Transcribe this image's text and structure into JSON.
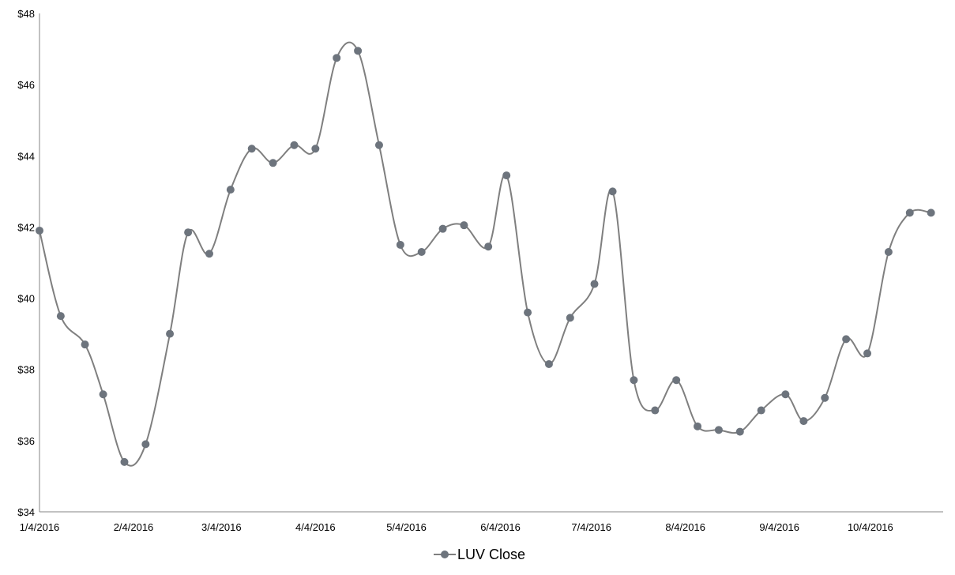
{
  "chart_data": {
    "type": "line",
    "title": "",
    "xlabel": "",
    "ylabel": "",
    "ylim": [
      34,
      48
    ],
    "xlim": [
      "2016-01-04",
      "2016-10-28"
    ],
    "y_ticks": [
      "$34",
      "$36",
      "$38",
      "$40",
      "$42",
      "$44",
      "$46",
      "$48"
    ],
    "y_tick_values": [
      34,
      36,
      38,
      40,
      42,
      44,
      46,
      48
    ],
    "x_ticks": [
      "1/4/2016",
      "2/4/2016",
      "3/4/2016",
      "4/4/2016",
      "5/4/2016",
      "6/4/2016",
      "7/4/2016",
      "8/4/2016",
      "9/4/2016",
      "10/4/2016"
    ],
    "x_tick_dates": [
      "2016-01-04",
      "2016-02-04",
      "2016-03-04",
      "2016-04-04",
      "2016-05-04",
      "2016-06-04",
      "2016-07-04",
      "2016-08-04",
      "2016-09-04",
      "2016-10-04"
    ],
    "grid": false,
    "smooth": true,
    "legend_position": "bottom",
    "series_color": "#7f7f7f",
    "marker_color": "#6d747d",
    "series": [
      {
        "name": "LUV Close",
        "x": [
          "2016-01-04",
          "2016-01-11",
          "2016-01-19",
          "2016-01-25",
          "2016-02-01",
          "2016-02-08",
          "2016-02-16",
          "2016-02-22",
          "2016-02-29",
          "2016-03-07",
          "2016-03-14",
          "2016-03-21",
          "2016-03-28",
          "2016-04-04",
          "2016-04-11",
          "2016-04-18",
          "2016-04-25",
          "2016-05-02",
          "2016-05-09",
          "2016-05-16",
          "2016-05-23",
          "2016-05-31",
          "2016-06-06",
          "2016-06-13",
          "2016-06-20",
          "2016-06-27",
          "2016-07-05",
          "2016-07-11",
          "2016-07-18",
          "2016-07-25",
          "2016-08-01",
          "2016-08-08",
          "2016-08-15",
          "2016-08-22",
          "2016-08-29",
          "2016-09-06",
          "2016-09-12",
          "2016-09-19",
          "2016-09-26",
          "2016-10-03",
          "2016-10-10",
          "2016-10-17",
          "2016-10-24"
        ],
        "values": [
          41.9,
          39.5,
          38.7,
          37.3,
          35.4,
          35.9,
          39.0,
          41.85,
          41.25,
          43.05,
          44.2,
          43.8,
          44.3,
          44.2,
          46.75,
          46.95,
          44.3,
          41.5,
          41.3,
          41.95,
          42.05,
          41.45,
          43.45,
          39.6,
          38.15,
          39.45,
          40.4,
          43.0,
          37.7,
          36.85,
          37.7,
          36.4,
          36.3,
          36.25,
          36.85,
          37.3,
          36.55,
          37.2,
          38.85,
          38.45,
          41.3,
          42.4,
          42.4
        ]
      }
    ]
  }
}
